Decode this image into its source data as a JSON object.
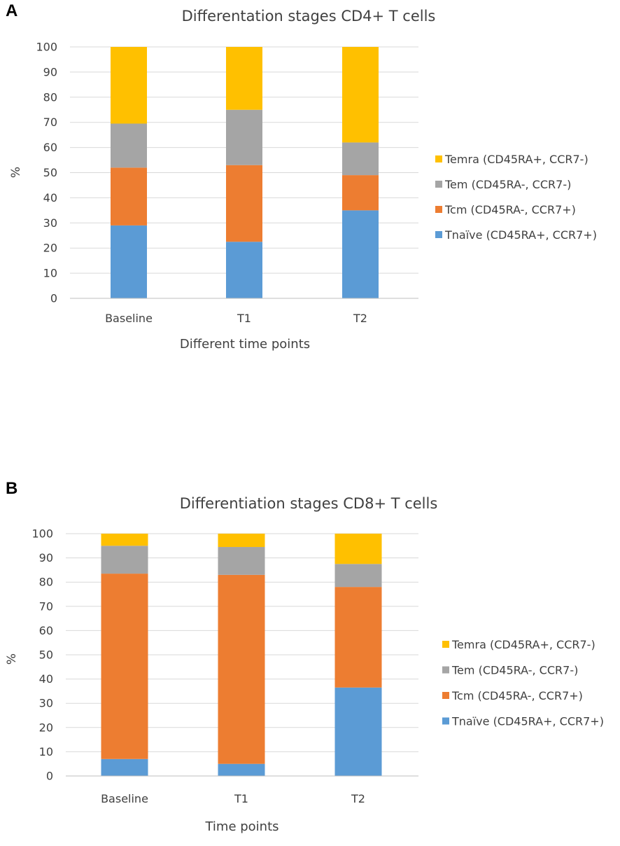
{
  "panels": {
    "a": {
      "letter": "A"
    },
    "b": {
      "letter": "B"
    }
  },
  "chart_data": [
    {
      "type": "bar",
      "stacked": true,
      "title": "Differentation stages CD4+ T cells",
      "xlabel": "Different time points",
      "ylabel": "%",
      "ylim": [
        0,
        100
      ],
      "yticks": [
        0,
        10,
        20,
        30,
        40,
        50,
        60,
        70,
        80,
        90,
        100
      ],
      "grid": true,
      "legend_position": "right",
      "categories": [
        "Baseline",
        "T1",
        "T2"
      ],
      "series": [
        {
          "name": "Tnaïve (CD45RA+, CCR7+)",
          "color": "#5B9BD5",
          "values": [
            29,
            22.5,
            35
          ]
        },
        {
          "name": "Tcm (CD45RA-, CCR7+)",
          "color": "#ED7D31",
          "values": [
            23,
            30.5,
            14
          ]
        },
        {
          "name": "Tem (CD45RA-, CCR7-)",
          "color": "#A5A5A5",
          "values": [
            17.5,
            22,
            13
          ]
        },
        {
          "name": "Temra (CD45RA+, CCR7-)",
          "color": "#FFC000",
          "values": [
            30.5,
            25,
            38
          ]
        }
      ]
    },
    {
      "type": "bar",
      "stacked": true,
      "title": "Differentiation stages CD8+ T cells",
      "xlabel": "Time points",
      "ylabel": "%",
      "ylim": [
        0,
        100
      ],
      "yticks": [
        0,
        10,
        20,
        30,
        40,
        50,
        60,
        70,
        80,
        90,
        100
      ],
      "grid": true,
      "legend_position": "right",
      "categories": [
        "Baseline",
        "T1",
        "T2"
      ],
      "series": [
        {
          "name": "Tnaïve (CD45RA+, CCR7+)",
          "color": "#5B9BD5",
          "values": [
            7,
            5,
            36.5
          ]
        },
        {
          "name": "Tcm (CD45RA-, CCR7+)",
          "color": "#ED7D31",
          "values": [
            76.5,
            78,
            41.5
          ]
        },
        {
          "name": "Tem (CD45RA-, CCR7-)",
          "color": "#A5A5A5",
          "values": [
            11.5,
            11.5,
            9.5
          ]
        },
        {
          "name": "Temra (CD45RA+, CCR7-)",
          "color": "#FFC000",
          "values": [
            5,
            5.5,
            12.5
          ]
        }
      ]
    }
  ]
}
